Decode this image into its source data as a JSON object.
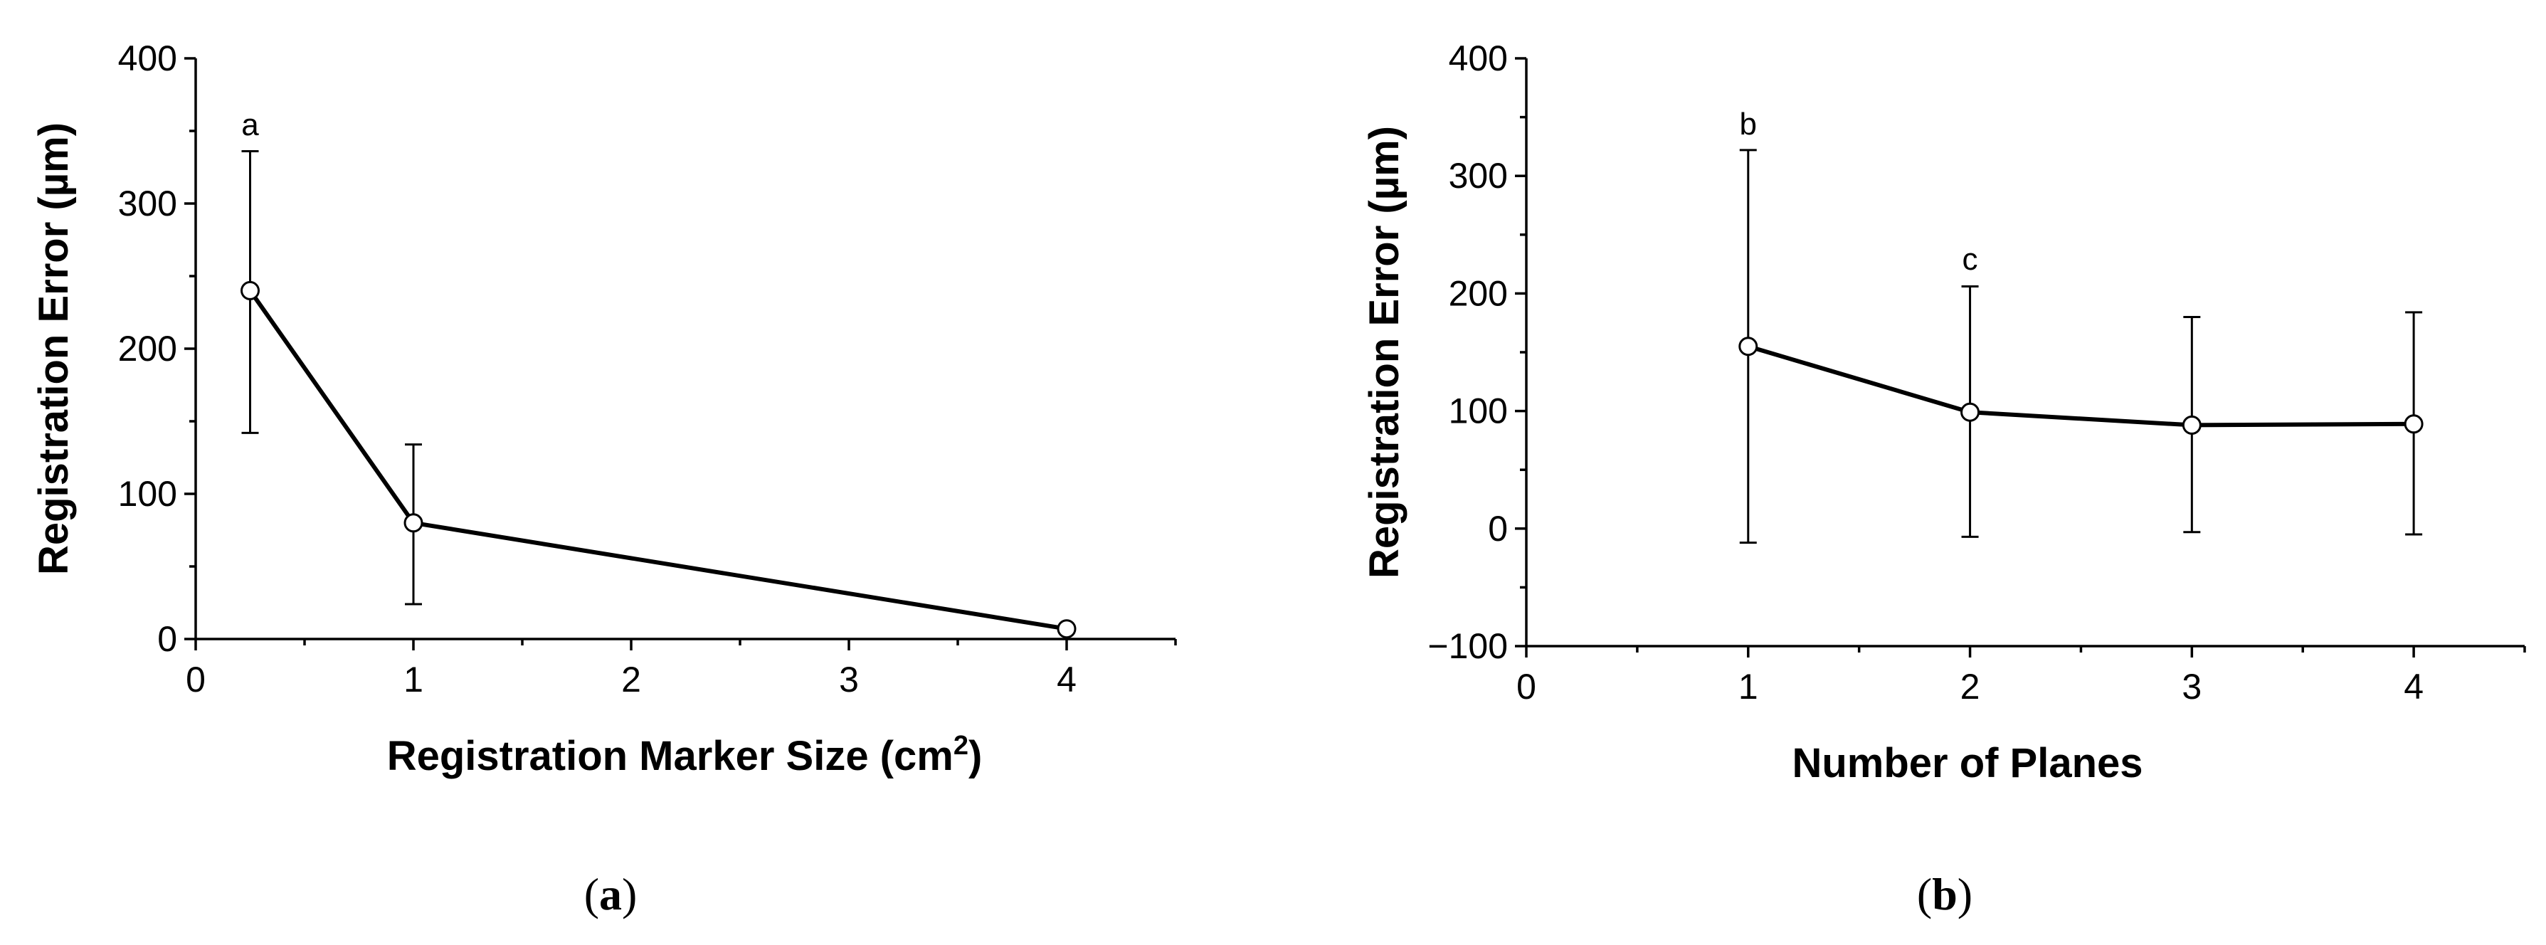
{
  "chart_data": [
    {
      "type": "line",
      "panel_label": "a",
      "xlabel": "Registration Marker Size (cm",
      "xlabel_sup": "2",
      "xlabel_suffix": ")",
      "ylabel": "Registration Error (µm)",
      "xlim": [
        0,
        4.5
      ],
      "ylim": [
        0,
        400
      ],
      "xticks": [
        0,
        1,
        2,
        3,
        4
      ],
      "yticks": [
        0,
        100,
        200,
        300,
        400
      ],
      "x_minor_ticks": [
        0.5,
        1.5,
        2.5,
        3.5,
        4.5
      ],
      "y_minor_ticks": [
        50,
        150,
        250,
        350
      ],
      "series": [
        {
          "x": [
            0.25,
            1,
            4
          ],
          "y": [
            240,
            80,
            7
          ],
          "err_low": [
            142,
            24,
            7
          ],
          "err_high": [
            336,
            134,
            7
          ],
          "marker": "open-circle"
        }
      ],
      "annotations": [
        {
          "text": "a",
          "x": 0.25,
          "y": 355
        }
      ],
      "grid": false,
      "legend": "none",
      "colors": {
        "line": "#000000",
        "marker_fill": "#ffffff"
      }
    },
    {
      "type": "line",
      "panel_label": "b",
      "xlabel": "Number of Planes",
      "ylabel": "Registration Error (µm)",
      "xlim": [
        0,
        4.5
      ],
      "ylim": [
        -100,
        400
      ],
      "xticks": [
        0,
        1,
        2,
        3,
        4
      ],
      "yticks": [
        -100,
        0,
        100,
        200,
        300,
        400
      ],
      "ytick_labels": [
        "−100",
        "0",
        "100",
        "200",
        "300",
        "400"
      ],
      "x_minor_ticks": [
        0.5,
        1.5,
        2.5,
        3.5,
        4.5
      ],
      "y_minor_ticks": [
        -50,
        50,
        150,
        250,
        350
      ],
      "series": [
        {
          "x": [
            1,
            2,
            3,
            4
          ],
          "y": [
            155,
            99,
            88,
            89
          ],
          "err_low": [
            -12,
            -7,
            -3,
            -5
          ],
          "err_high": [
            322,
            206,
            180,
            184
          ],
          "marker": "open-circle"
        }
      ],
      "annotations": [
        {
          "text": "b",
          "x": 1,
          "y": 345
        },
        {
          "text": "c",
          "x": 2,
          "y": 230
        }
      ],
      "grid": false,
      "legend": "none",
      "colors": {
        "line": "#000000",
        "marker_fill": "#ffffff"
      }
    }
  ],
  "captions": {
    "a": {
      "open": "(",
      "letter": "a",
      "close": ")"
    },
    "b": {
      "open": "(",
      "letter": "b",
      "close": ")"
    }
  }
}
